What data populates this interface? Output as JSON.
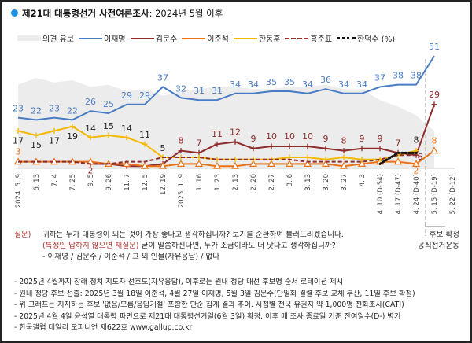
{
  "header": {
    "title_bold": "제21대 대통령선거 사전여론조사",
    "title_rest": ": 2024년 5월 이후"
  },
  "chart_data": {
    "type": "line",
    "title": "제21대 대통령선거 사전여론조사: 2024년 5월 이후",
    "unit_label": "(%)",
    "ylim": [
      0,
      55
    ],
    "grid": false,
    "legend_position": "top",
    "categories": [
      "2024. 5. 9",
      "6. 13",
      "7. 4",
      "7. 25",
      "9. 5",
      "9. 26",
      "11. 7",
      "12. 5",
      "12. 19",
      "2025. 1. 9",
      "1. 16",
      "1. 23",
      "2. 13",
      "2. 20",
      "2. 27",
      "3. 6",
      "3. 13",
      "3. 20",
      "3. 27",
      "4. 3",
      "4. 10 (D-54)",
      "4. 17 (D-47)",
      "4. 24 (D-40)",
      "5. 15 (D-19)",
      "5. 22 (D-12)"
    ],
    "area": {
      "name": "의견 유보",
      "color": "#ececec",
      "values": [
        38,
        41,
        39,
        40,
        37,
        38,
        35,
        36,
        33,
        35,
        36,
        37,
        37,
        36,
        36,
        37,
        37,
        38,
        36,
        36,
        31,
        28,
        24,
        17,
        null
      ]
    },
    "series": [
      {
        "name": "이재명",
        "color": "#4a7cc4",
        "marker": "none",
        "values": [
          23,
          22,
          23,
          22,
          26,
          25,
          29,
          29,
          37,
          32,
          31,
          31,
          34,
          34,
          35,
          35,
          34,
          36,
          34,
          34,
          37,
          38,
          38,
          51,
          null
        ],
        "labels": [
          23,
          22,
          23,
          22,
          26,
          25,
          29,
          29,
          37,
          32,
          31,
          31,
          34,
          34,
          35,
          35,
          34,
          36,
          34,
          34,
          37,
          38,
          38,
          51,
          null
        ]
      },
      {
        "name": "김문수",
        "color": "#8e2b2b",
        "marker": "plus",
        "values": [
          null,
          null,
          null,
          null,
          2,
          2,
          1,
          1,
          2,
          8,
          7,
          11,
          12,
          9,
          10,
          10,
          10,
          9,
          8,
          9,
          9,
          7,
          6,
          29,
          null
        ],
        "labels": [
          null,
          null,
          null,
          null,
          2,
          null,
          null,
          null,
          null,
          8,
          7,
          11,
          12,
          9,
          10,
          10,
          10,
          9,
          8,
          9,
          9,
          7,
          6,
          29,
          null
        ]
      },
      {
        "name": "이준석",
        "color": "#e8731a",
        "marker": "triangle",
        "values": [
          3,
          3,
          3,
          3,
          3,
          2,
          2,
          1,
          1,
          2,
          2,
          1,
          1,
          2,
          2,
          2,
          2,
          2,
          1,
          2,
          3,
          3,
          2,
          8,
          null
        ],
        "labels": [
          3,
          null,
          null,
          null,
          null,
          null,
          null,
          null,
          null,
          null,
          null,
          null,
          null,
          null,
          null,
          null,
          null,
          null,
          null,
          null,
          null,
          null,
          2,
          8,
          null
        ]
      },
      {
        "name": "한동훈",
        "color": "#f5b800",
        "marker": "plus",
        "values": [
          17,
          15,
          17,
          19,
          14,
          15,
          14,
          11,
          5,
          5,
          5,
          4,
          4,
          4,
          4,
          5,
          5,
          4,
          5,
          4,
          4,
          6,
          8,
          null,
          null
        ],
        "labels": [
          17,
          15,
          17,
          19,
          14,
          15,
          14,
          11,
          5,
          null,
          null,
          null,
          null,
          null,
          null,
          null,
          null,
          null,
          null,
          null,
          null,
          null,
          8,
          null,
          null
        ]
      },
      {
        "name": "홍준표",
        "color": "#8e2b2b",
        "marker": "dashed",
        "values": [
          3,
          3,
          3,
          3,
          2,
          2,
          3,
          3,
          5,
          5,
          5,
          4,
          4,
          4,
          4,
          4,
          3,
          3,
          3,
          3,
          4,
          6,
          6,
          null,
          null
        ],
        "labels": [
          null,
          null,
          null,
          null,
          null,
          null,
          null,
          null,
          null,
          null,
          null,
          null,
          null,
          null,
          null,
          null,
          null,
          null,
          null,
          null,
          null,
          null,
          null,
          null,
          null
        ]
      },
      {
        "name": "한덕수",
        "color": "#111111",
        "marker": "dotted",
        "values": [
          null,
          null,
          null,
          null,
          null,
          null,
          null,
          null,
          null,
          null,
          null,
          null,
          null,
          null,
          null,
          null,
          null,
          null,
          null,
          null,
          2,
          7,
          7,
          null,
          null
        ],
        "labels": [
          null,
          null,
          null,
          null,
          null,
          null,
          null,
          null,
          null,
          null,
          null,
          null,
          null,
          null,
          null,
          null,
          null,
          null,
          null,
          null,
          null,
          null,
          null,
          null,
          null
        ]
      }
    ]
  },
  "legend": {
    "items": [
      "의견 유보",
      "이재명",
      "김문수",
      "이준석",
      "한동훈",
      "홍준표",
      "한덕수 (%)"
    ]
  },
  "side_note": {
    "line1": "후보 확정",
    "line2": "공식선거운동"
  },
  "question": {
    "label": "질문)",
    "line1": "귀하는 누가 대통령이 되는 것이 가장 좋다고 생각하십니까? 보기를 순환하여 불러드리겠습니다.",
    "line2_red": "(특정인 답하지 않으면 재질문)",
    "line2_rest": " 굳이 말씀하신다면, 누가 조금이라도 더 낫다고 생각하십니까?",
    "line3": "- 이재명 / 김문수 / 이준석 / 그 외 인물(자유응답) / 없다"
  },
  "notes": [
    "- 2025년 4월까지 장래 정치 지도자 선호도(자유응답), 이후로는 원내 정당 대선 후보명 순서 로테이션 제시",
    "- 원내 정당 후보 선출: 2025년 3월 18일 이준석, 4월 27일 이재명, 5월 3일 김문수(단일화 결렬·후보 교체 무산, 11일 후보 확정)",
    "- 위 그래프는 지지하는 후보 '없음/모름/응답거절' 포함한 단순 집계 결과 추이. 시점별 전국 유권자 약 1,000명 전화조사(CATI)",
    "- 2025년 4월 4일 윤석열 대통령 파면으로 제21대 대통령선거일(6월 3일) 확정. 이후 매 조사 종료일 기준 잔여일수(D-) 병기",
    "- 한국갤럽 데일리 오피니언 제622호 www.gallup.co.kr"
  ]
}
